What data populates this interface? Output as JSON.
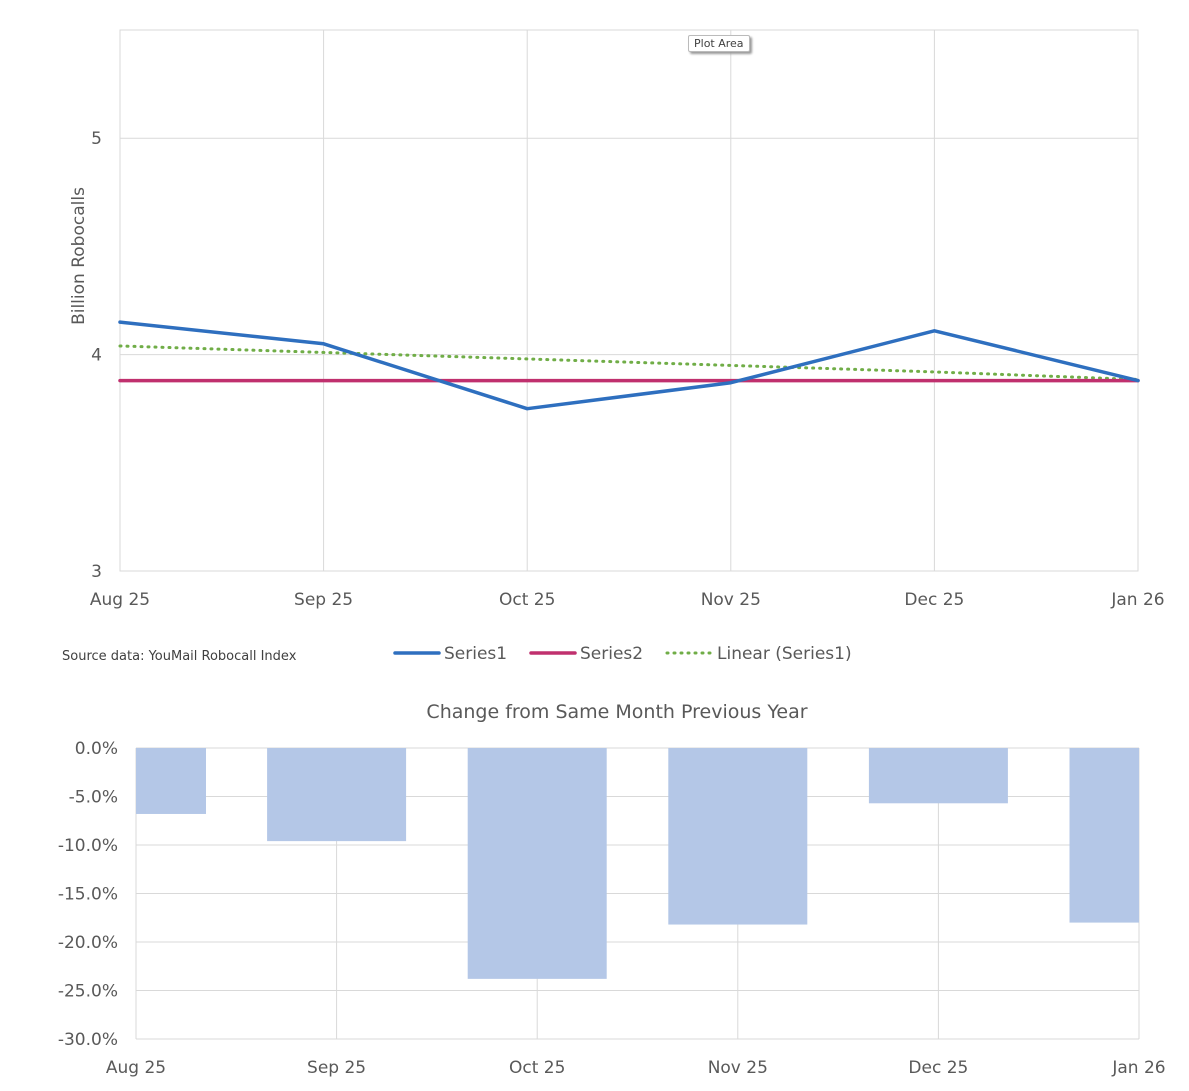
{
  "tooltip": "Plot Area",
  "source_note": "Source data: YouMail Robocall Index",
  "colors": {
    "series1": "#2E6FBF",
    "series2": "#C0306E",
    "trend": "#70AD47",
    "bars": "#B4C7E7",
    "grid": "#D9D9D9"
  },
  "chart_data": [
    {
      "type": "line",
      "title": "",
      "ylabel": "Billion Robocalls",
      "categories": [
        "Aug 25",
        "Sep 25",
        "Oct 25",
        "Nov 25",
        "Dec 25",
        "Jan 26"
      ],
      "ylim": [
        3,
        5.5
      ],
      "yticks": [
        3,
        4,
        5
      ],
      "grid": true,
      "legend": "bottom",
      "series": [
        {
          "name": "Series1",
          "values": [
            4.15,
            4.05,
            3.75,
            3.87,
            4.11,
            3.88
          ]
        },
        {
          "name": "Series2",
          "values": [
            3.88,
            3.88,
            3.88,
            3.88,
            3.88,
            3.88
          ]
        },
        {
          "name": "Linear (Series1)",
          "values": [
            4.04,
            4.01,
            3.98,
            3.95,
            3.92,
            3.885
          ],
          "style": "dotted"
        }
      ]
    },
    {
      "type": "bar",
      "title": "Change from Same Month Previous Year",
      "categories": [
        "Aug 25",
        "Sep 25",
        "Oct 25",
        "Nov 25",
        "Dec 25",
        "Jan 26"
      ],
      "values": [
        -6.8,
        -9.6,
        -23.8,
        -18.2,
        -5.7,
        -18.0
      ],
      "ylim": [
        -30,
        0
      ],
      "yticks": [
        "0.0%",
        "-5.0%",
        "-10.0%",
        "-15.0%",
        "-20.0%",
        "-25.0%",
        "-30.0%"
      ],
      "grid": true
    }
  ]
}
